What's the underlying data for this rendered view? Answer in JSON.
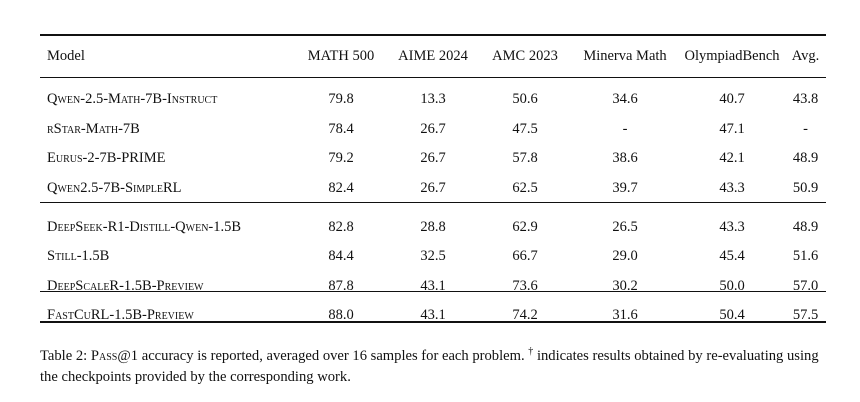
{
  "table": {
    "columns": [
      "Model",
      "MATH 500",
      "AIME 2024",
      "AMC 2023",
      "Minerva Math",
      "OlympiadBench",
      "Avg."
    ],
    "rows": [
      {
        "model": "Qwen-2.5-Math-7B-Instruct",
        "values": [
          "79.8",
          "13.3",
          "50.6",
          "34.6",
          "40.7",
          "43.8"
        ]
      },
      {
        "model": "rStar-Math-7B",
        "values": [
          "78.4",
          "26.7",
          "47.5",
          "-",
          "47.1",
          "-"
        ]
      },
      {
        "model": "Eurus-2-7B-PRIME",
        "values": [
          "79.2",
          "26.7",
          "57.8",
          "38.6",
          "42.1",
          "48.9"
        ]
      },
      {
        "model": "Qwen2.5-7B-SimpleRL",
        "values": [
          "82.4",
          "26.7",
          "62.5",
          "39.7",
          "43.3",
          "50.9"
        ]
      },
      {
        "model": "DeepSeek-R1-Distill-Qwen-1.5B",
        "values": [
          "82.8",
          "28.8",
          "62.9",
          "26.5",
          "43.3",
          "48.9"
        ]
      },
      {
        "model": "Still-1.5B",
        "values": [
          "84.4",
          "32.5",
          "66.7",
          "29.0",
          "45.4",
          "51.6"
        ]
      },
      {
        "model": "DeepScaleR-1.5B-Preview",
        "values": [
          "87.8",
          "43.1",
          "73.6",
          "30.2",
          "50.0",
          "57.0"
        ]
      },
      {
        "model": "FastCuRL-1.5B-Preview",
        "values": [
          "88.0",
          "43.1",
          "74.2",
          "31.6",
          "50.4",
          "57.5"
        ]
      }
    ]
  },
  "caption": {
    "label": "Table 2:",
    "metric": "Pass@1",
    "text_1": "accuracy is reported, averaged over 16 samples for each problem.",
    "dagger": "†",
    "text_2": "indicates results obtained by re-evaluating using the checkpoints provided by the corresponding work."
  }
}
